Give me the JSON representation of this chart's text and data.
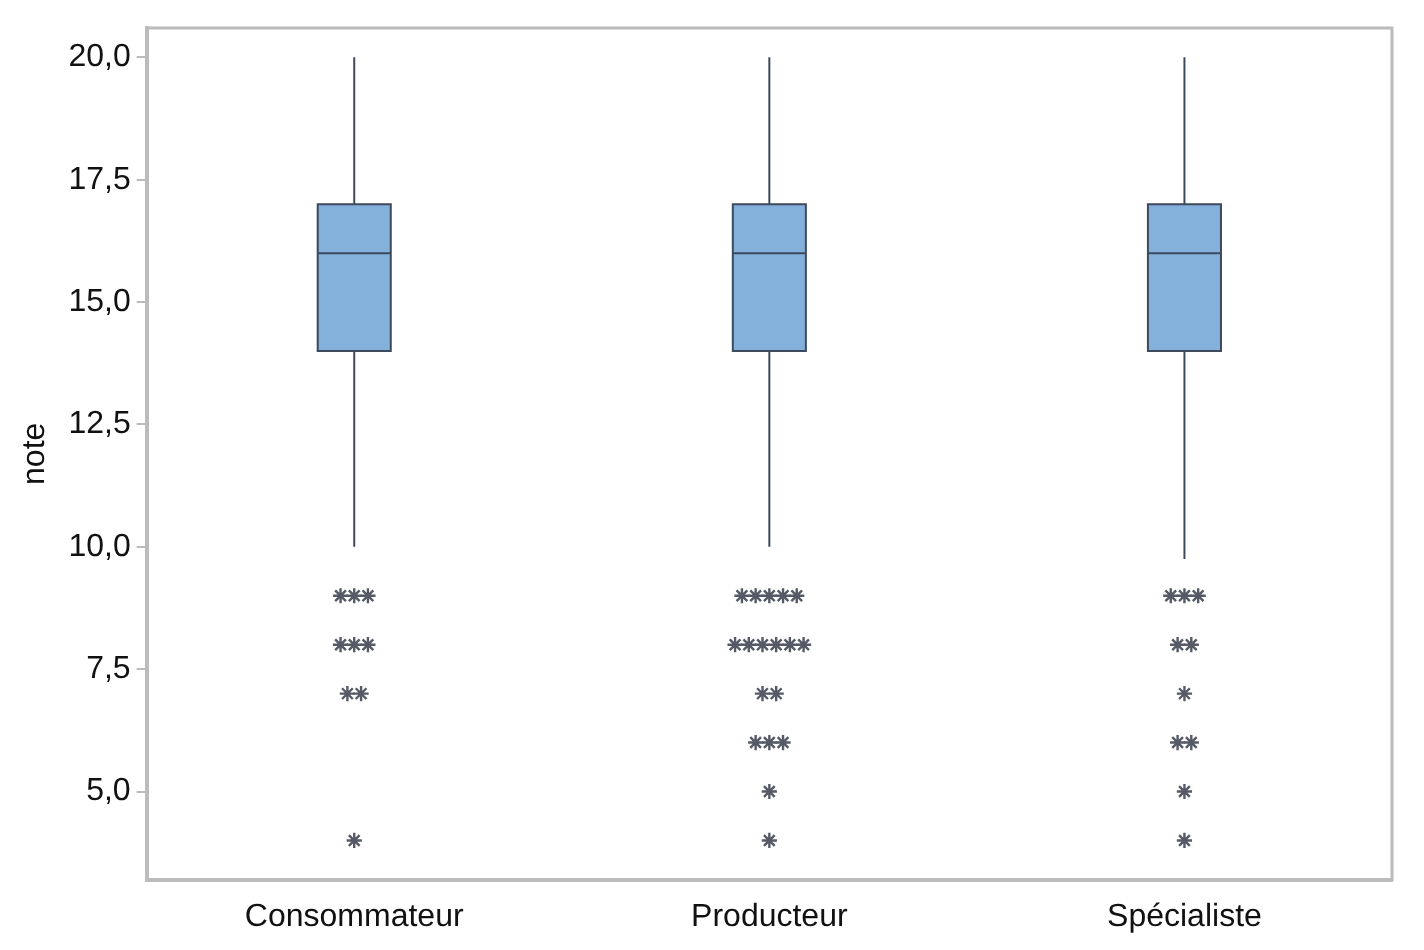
{
  "chart_data": {
    "type": "box",
    "ylabel": "note",
    "categories": [
      "Consommateur",
      "Producteur",
      "Spécialiste"
    ],
    "color": "#84b0dc",
    "boxes": [
      {
        "low": 10,
        "q1": 14,
        "median": 16,
        "q3": 17,
        "high": 20,
        "outliers": [
          9,
          9,
          9,
          8,
          8,
          8,
          7,
          7,
          4
        ]
      },
      {
        "low": 10,
        "q1": 14,
        "median": 16,
        "q3": 17,
        "high": 20,
        "outliers": [
          9,
          9,
          9,
          9,
          9,
          8,
          8,
          8,
          8,
          8,
          8,
          7,
          7,
          6,
          6,
          6,
          5,
          4
        ]
      },
      {
        "low": 9.75,
        "q1": 14,
        "median": 16,
        "q3": 17,
        "high": 20,
        "outliers": [
          9,
          9,
          9,
          8,
          8,
          7,
          6,
          6,
          5,
          4
        ]
      }
    ],
    "ylim": [
      3.2,
      20.6
    ],
    "yticks": [
      {
        "value": 5,
        "label": "5,0"
      },
      {
        "value": 7.5,
        "label": "7,5"
      },
      {
        "value": 10,
        "label": "10,0"
      },
      {
        "value": 12.5,
        "label": "12,5"
      },
      {
        "value": 15,
        "label": "15,0"
      },
      {
        "value": 17.5,
        "label": "17,5"
      },
      {
        "value": 20,
        "label": "20,0"
      }
    ],
    "marker": "star",
    "grid": false,
    "legend": false
  }
}
